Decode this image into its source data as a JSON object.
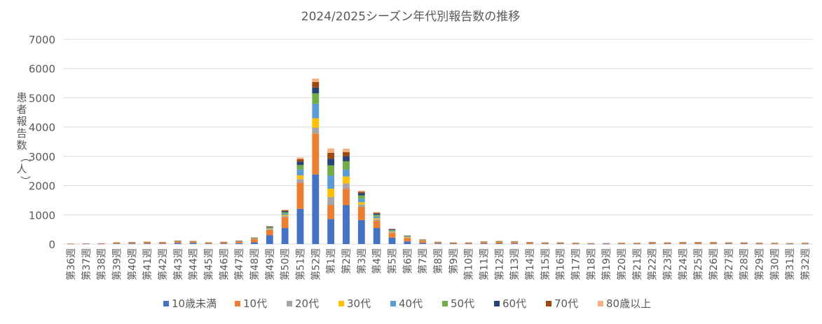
{
  "chart_data": {
    "type": "bar",
    "stacked": true,
    "title": "2024/2025シーズン年代別報告数の推移",
    "ylabel": "患者報告数（人）",
    "ylim": [
      0,
      7000
    ],
    "yticks": [
      0,
      1000,
      2000,
      3000,
      4000,
      5000,
      6000,
      7000
    ],
    "grid": true,
    "legend_position": "bottom",
    "categories": [
      "第36週",
      "第37週",
      "第38週",
      "第39週",
      "第40週",
      "第41週",
      "第42週",
      "第43週",
      "第44週",
      "第45週",
      "第46週",
      "第47週",
      "第48週",
      "第49週",
      "第50週",
      "第51週",
      "第52週",
      "第1週",
      "第2週",
      "第3週",
      "第4週",
      "第5週",
      "第6週",
      "第7週",
      "第8週",
      "第9週",
      "第10週",
      "第11週",
      "第12週",
      "第13週",
      "第14週",
      "第15週",
      "第16週",
      "第17週",
      "第18週",
      "第19週",
      "第20週",
      "第21週",
      "第22週",
      "第23週",
      "第24週",
      "第25週",
      "第26週",
      "第27週",
      "第28週",
      "第29週",
      "第30週",
      "第31週",
      "第32週"
    ],
    "series": [
      {
        "name": "10歳未満",
        "color": "#4472C4",
        "values": [
          5,
          10,
          8,
          15,
          20,
          20,
          15,
          40,
          40,
          15,
          20,
          30,
          60,
          300,
          550,
          1200,
          2380,
          850,
          1330,
          820,
          550,
          220,
          90,
          40,
          20,
          10,
          10,
          20,
          20,
          20,
          10,
          10,
          10,
          5,
          5,
          5,
          5,
          5,
          10,
          10,
          10,
          10,
          10,
          10,
          10,
          5,
          5,
          5,
          5
        ]
      },
      {
        "name": "10代",
        "color": "#ED7D31",
        "values": [
          15,
          15,
          20,
          35,
          35,
          45,
          40,
          60,
          50,
          35,
          40,
          55,
          110,
          180,
          370,
          900,
          1400,
          480,
          560,
          450,
          250,
          160,
          120,
          70,
          30,
          30,
          30,
          40,
          60,
          50,
          40,
          30,
          30,
          25,
          15,
          15,
          30,
          30,
          40,
          30,
          40,
          40,
          40,
          30,
          30,
          25,
          30,
          15,
          30
        ]
      },
      {
        "name": "20代",
        "color": "#A5A5A5",
        "values": [
          0,
          0,
          0,
          2,
          2,
          3,
          2,
          3,
          3,
          2,
          3,
          5,
          10,
          20,
          40,
          120,
          200,
          280,
          180,
          80,
          40,
          20,
          15,
          8,
          5,
          3,
          3,
          5,
          5,
          5,
          3,
          3,
          3,
          2,
          2,
          2,
          2,
          2,
          3,
          3,
          3,
          3,
          3,
          3,
          3,
          2,
          2,
          2,
          2
        ]
      },
      {
        "name": "30代",
        "color": "#FFC000",
        "values": [
          0,
          0,
          0,
          2,
          2,
          3,
          2,
          3,
          3,
          2,
          3,
          5,
          10,
          20,
          35,
          130,
          320,
          280,
          240,
          80,
          40,
          20,
          15,
          8,
          5,
          3,
          3,
          5,
          5,
          5,
          3,
          3,
          3,
          2,
          2,
          2,
          2,
          2,
          3,
          3,
          3,
          3,
          3,
          3,
          3,
          2,
          2,
          2,
          2
        ]
      },
      {
        "name": "40代",
        "color": "#5B9BD5",
        "values": [
          0,
          0,
          0,
          2,
          2,
          3,
          2,
          3,
          3,
          2,
          3,
          5,
          10,
          25,
          50,
          200,
          500,
          450,
          240,
          120,
          60,
          30,
          20,
          10,
          5,
          3,
          3,
          5,
          5,
          5,
          3,
          3,
          3,
          2,
          2,
          2,
          2,
          2,
          3,
          3,
          3,
          3,
          3,
          3,
          3,
          2,
          2,
          2,
          2
        ]
      },
      {
        "name": "50代",
        "color": "#70AD47",
        "values": [
          0,
          0,
          0,
          2,
          2,
          3,
          2,
          3,
          3,
          2,
          3,
          5,
          10,
          25,
          45,
          150,
          350,
          350,
          280,
          110,
          60,
          30,
          15,
          10,
          5,
          3,
          3,
          5,
          5,
          5,
          3,
          3,
          3,
          2,
          2,
          2,
          2,
          2,
          3,
          3,
          3,
          3,
          3,
          3,
          3,
          2,
          2,
          2,
          2
        ]
      },
      {
        "name": "60代",
        "color": "#264478",
        "values": [
          0,
          0,
          0,
          2,
          2,
          3,
          2,
          3,
          3,
          2,
          3,
          5,
          8,
          20,
          35,
          120,
          200,
          230,
          170,
          80,
          40,
          20,
          10,
          8,
          4,
          3,
          3,
          5,
          5,
          5,
          3,
          3,
          3,
          2,
          2,
          2,
          2,
          2,
          3,
          3,
          3,
          3,
          3,
          3,
          3,
          2,
          2,
          2,
          2
        ]
      },
      {
        "name": "70代",
        "color": "#9E480E",
        "values": [
          0,
          0,
          0,
          2,
          2,
          3,
          2,
          3,
          3,
          2,
          3,
          5,
          7,
          15,
          25,
          80,
          190,
          200,
          140,
          50,
          30,
          15,
          8,
          5,
          3,
          2,
          2,
          3,
          3,
          3,
          2,
          2,
          2,
          2,
          2,
          2,
          2,
          2,
          2,
          2,
          2,
          2,
          2,
          2,
          2,
          2,
          2,
          2,
          2
        ]
      },
      {
        "name": "80歳以上",
        "color": "#F4B183",
        "values": [
          0,
          0,
          0,
          1,
          1,
          2,
          1,
          2,
          2,
          1,
          2,
          3,
          5,
          10,
          20,
          60,
          120,
          150,
          120,
          40,
          20,
          10,
          5,
          3,
          2,
          1,
          1,
          2,
          2,
          2,
          1,
          1,
          1,
          1,
          1,
          1,
          1,
          1,
          1,
          1,
          1,
          1,
          1,
          1,
          1,
          1,
          1,
          1,
          1
        ]
      }
    ]
  }
}
